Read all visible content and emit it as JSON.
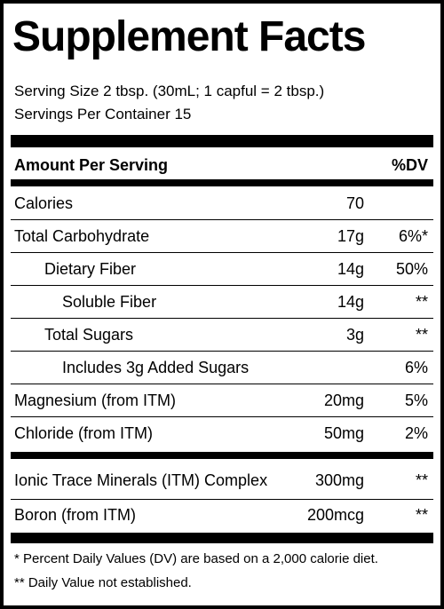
{
  "title": "Supplement Facts",
  "serving_size": "Serving Size 2 tbsp. (30mL; 1 capful = 2 tbsp.)",
  "servings_per_container": "Servings Per Container 15",
  "header": {
    "amount_label": "Amount Per Serving",
    "dv_label": "%DV"
  },
  "rows": [
    {
      "name": "Calories",
      "amount": "70",
      "dv": ""
    },
    {
      "name": "Total Carbohydrate",
      "amount": "17g",
      "dv": "6%*"
    },
    {
      "name": "Dietary Fiber",
      "amount": "14g",
      "dv": "50%"
    },
    {
      "name": "Soluble Fiber",
      "amount": "14g",
      "dv": "**"
    },
    {
      "name": "Total Sugars",
      "amount": "3g",
      "dv": "**"
    },
    {
      "name": "Includes 3g Added Sugars",
      "amount": "",
      "dv": "6%"
    },
    {
      "name": "Magnesium (from ITM)",
      "amount": "20mg",
      "dv": "5%"
    },
    {
      "name": "Chloride (from ITM)",
      "amount": "50mg",
      "dv": "2%"
    },
    {
      "name": "Ionic Trace Minerals (ITM) Complex",
      "amount": "300mg",
      "dv": "**"
    },
    {
      "name": "Boron (from ITM)",
      "amount": "200mcg",
      "dv": "**"
    }
  ],
  "footnotes": [
    "* Percent Daily Values (DV) are based on a 2,000 calorie diet.",
    "** Daily Value not established."
  ]
}
